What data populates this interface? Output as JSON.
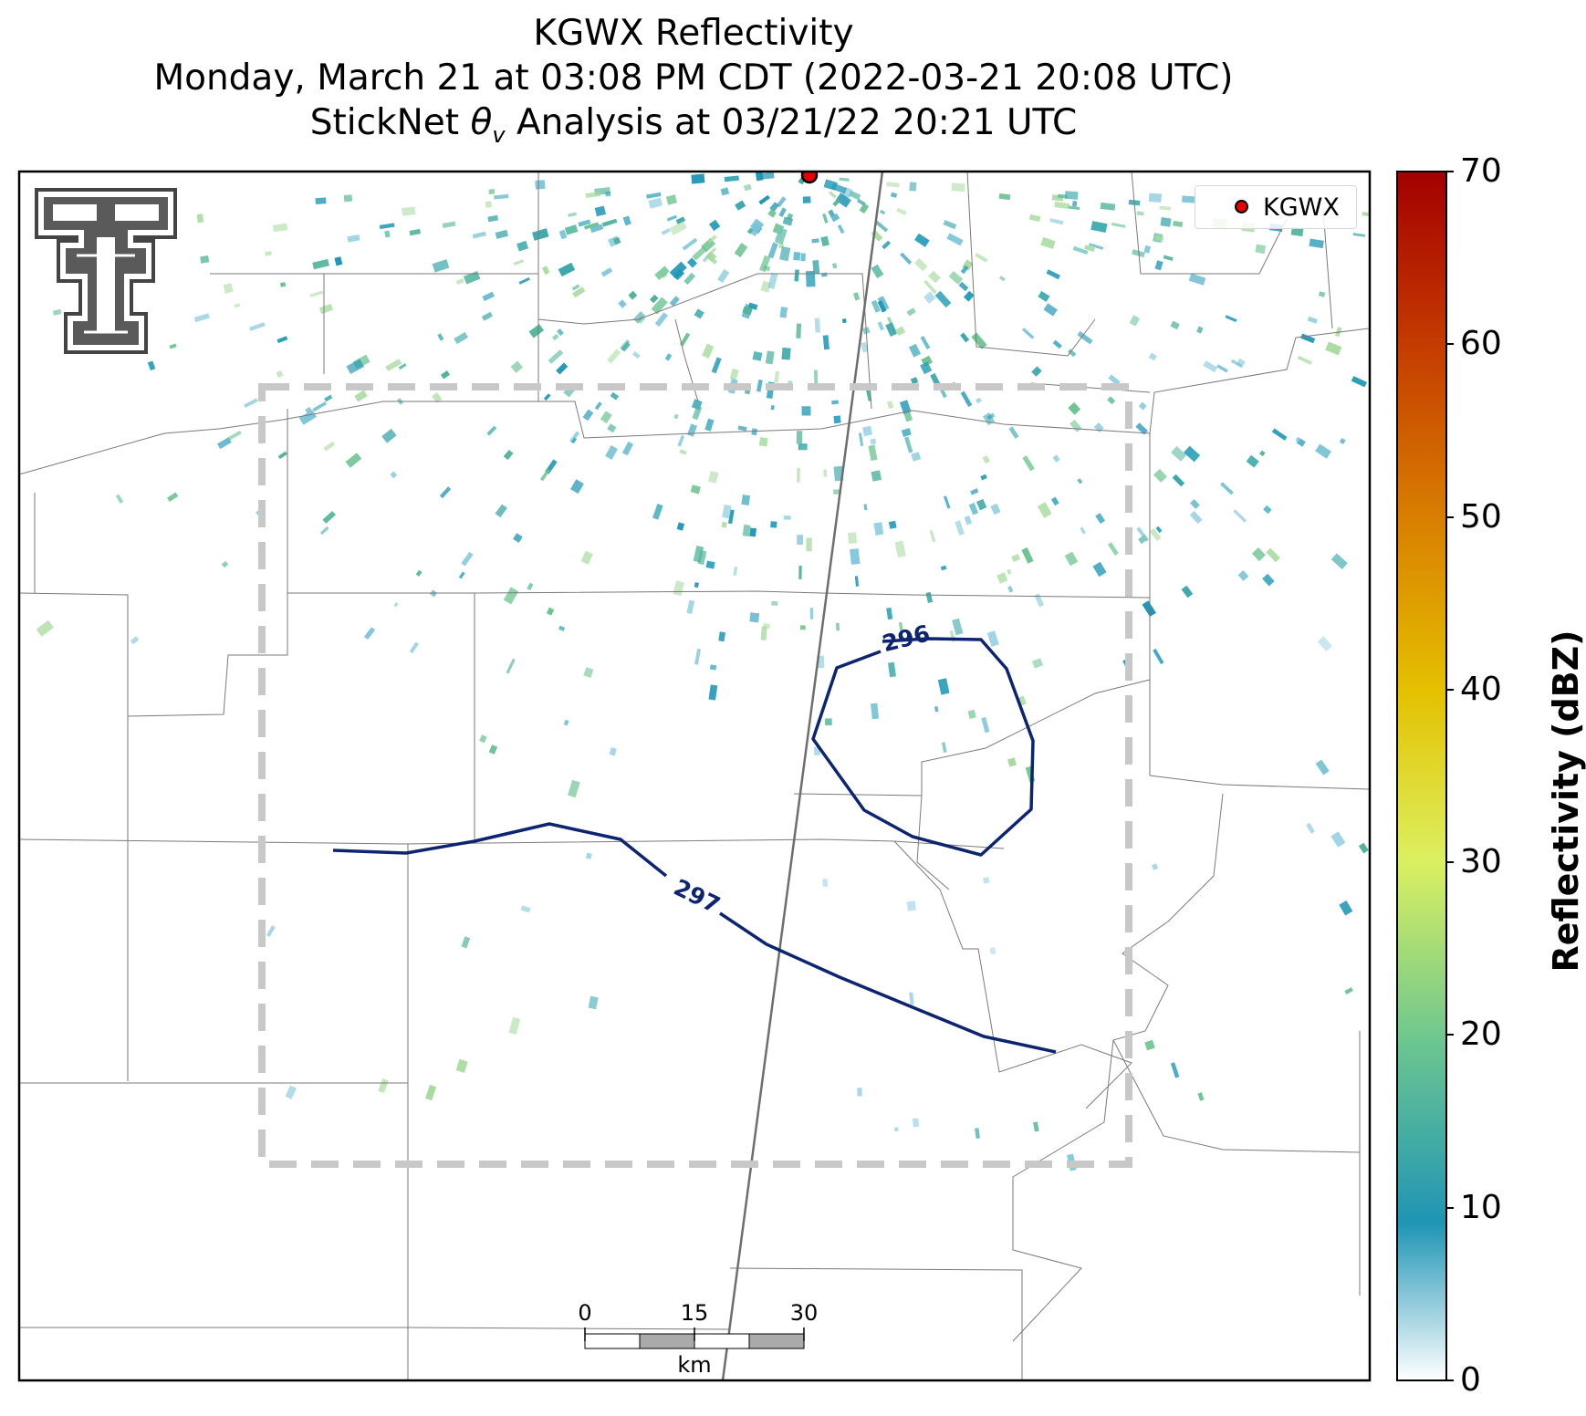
{
  "title": {
    "line1": "KGWX Reflectivity",
    "line2": "Monday, March 21 at 03:08 PM CDT (2022-03-21 20:08 UTC)",
    "line3_prefix": "StickNet ",
    "line3_symbol": "θ",
    "line3_subscript": "v",
    "line3_suffix": " Analysis at 03/21/22 20:21 UTC"
  },
  "legend": {
    "label": "KGWX"
  },
  "colorbar": {
    "label": "Reflectivity (dBZ)",
    "ticks": [
      "0",
      "10",
      "20",
      "30",
      "40",
      "50",
      "60",
      "70"
    ],
    "range": [
      0,
      70
    ]
  },
  "contours": [
    {
      "label": "296"
    },
    {
      "label": "297"
    }
  ],
  "scale_bar": {
    "ticks": [
      "0",
      "15",
      "30"
    ],
    "unit": "km"
  },
  "colors": {
    "contour": "#0d2470",
    "radar_site": "#e60000",
    "domain_box": "#c8c8c8",
    "logo": "#555555"
  },
  "icons": {
    "logo": "texas-tech-double-t-logo"
  }
}
